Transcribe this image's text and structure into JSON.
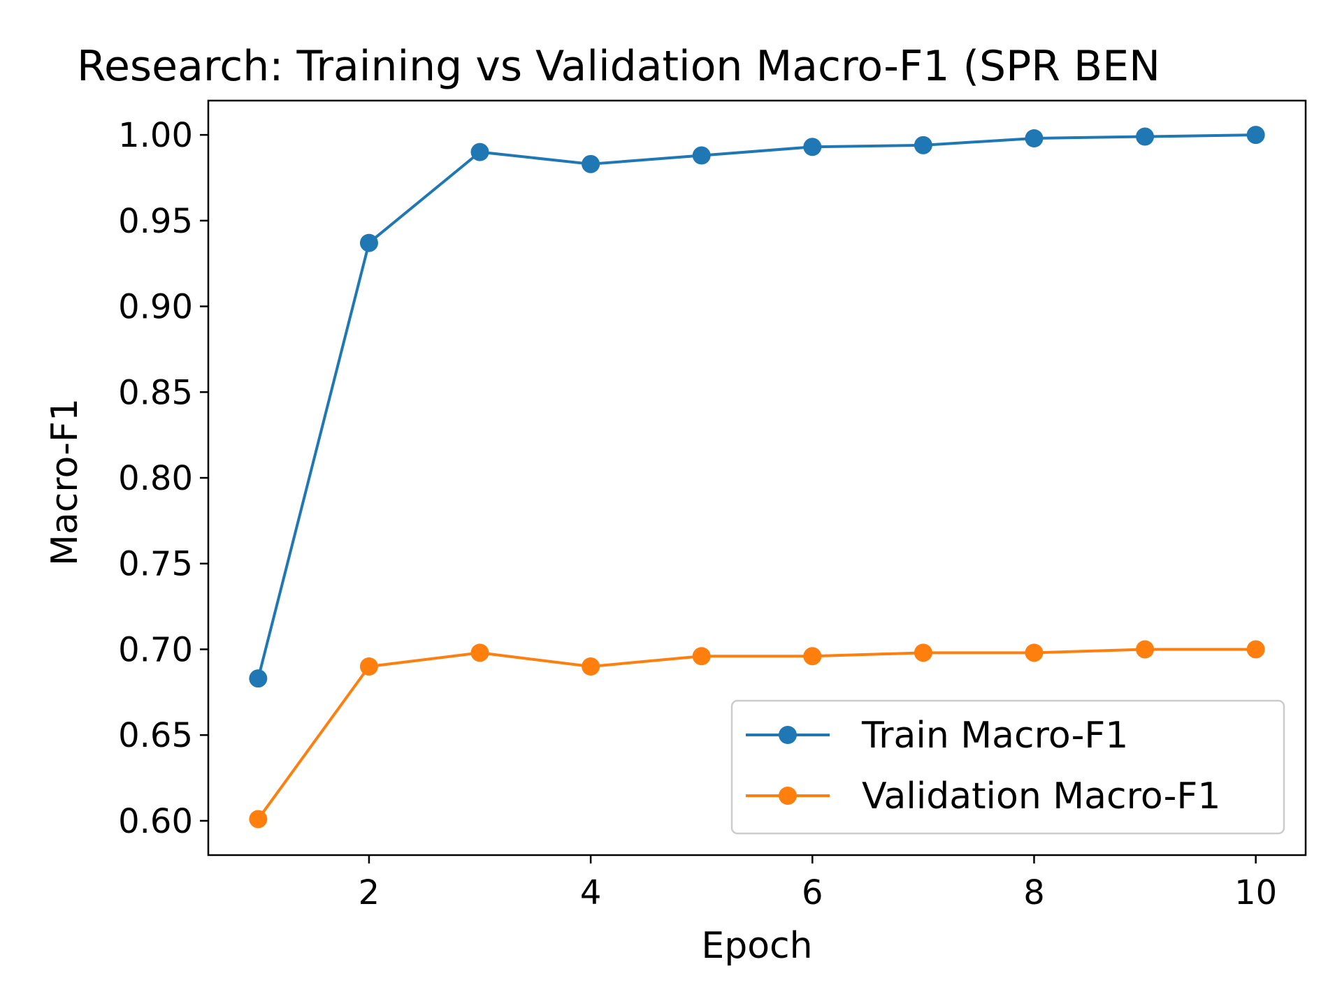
{
  "chart_data": {
    "type": "line",
    "title": "Research: Training vs Validation Macro-F1 (SPR BEN",
    "xlabel": "Epoch",
    "ylabel": "Macro-F1",
    "x": [
      1,
      2,
      3,
      4,
      5,
      6,
      7,
      8,
      9,
      10
    ],
    "xlim": [
      0.55,
      10.45
    ],
    "ylim": [
      0.58,
      1.02
    ],
    "xticks": [
      2,
      4,
      6,
      8,
      10
    ],
    "xtick_labels": [
      "2",
      "4",
      "6",
      "8",
      "10"
    ],
    "yticks": [
      0.6,
      0.65,
      0.7,
      0.75,
      0.8,
      0.85,
      0.9,
      0.95,
      1.0
    ],
    "ytick_labels": [
      "0.60",
      "0.65",
      "0.70",
      "0.75",
      "0.80",
      "0.85",
      "0.90",
      "0.95",
      "1.00"
    ],
    "grid": false,
    "legend_position": "lower-right",
    "series": [
      {
        "name": "Train Macro-F1",
        "color": "#1f77b4",
        "marker": "circle",
        "values": [
          0.683,
          0.937,
          0.99,
          0.983,
          0.988,
          0.993,
          0.994,
          0.998,
          0.999,
          1.0
        ]
      },
      {
        "name": "Validation Macro-F1",
        "color": "#ff7f0e",
        "marker": "circle",
        "values": [
          0.601,
          0.69,
          0.698,
          0.69,
          0.696,
          0.696,
          0.698,
          0.698,
          0.7,
          0.7
        ]
      }
    ]
  }
}
